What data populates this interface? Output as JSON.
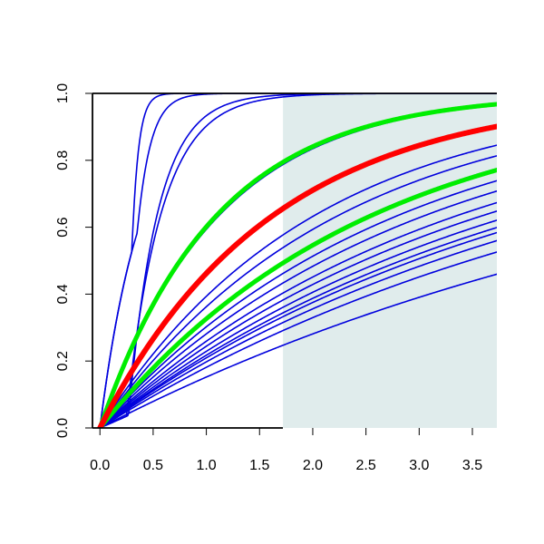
{
  "chart_data": {
    "type": "line",
    "title": "",
    "xlabel": "",
    "ylabel": "",
    "xlim": [
      -0.07,
      3.73
    ],
    "ylim": [
      0,
      1
    ],
    "grid": false,
    "legend": "none",
    "x_ticks": [
      "0.0",
      "0.5",
      "1.0",
      "1.5",
      "2.0",
      "2.5",
      "3.0",
      "3.5"
    ],
    "y_ticks": [
      "0.0",
      "0.2",
      "0.4",
      "0.6",
      "0.8",
      "1.0"
    ],
    "shaded_region": {
      "x_from": 1.72,
      "x_to": 3.73,
      "color": "#e0ecec"
    },
    "colors": {
      "blue": "#0000dd",
      "red": "#ff0000",
      "green": "#00ee00",
      "axis": "#000000"
    },
    "series": [
      {
        "color": "blue",
        "kind": "rise_step",
        "start": 0.3,
        "rate": 14,
        "width": 1.6
      },
      {
        "color": "blue",
        "kind": "step_at",
        "start": 0.27,
        "rate": 3.5,
        "width": 1.6
      },
      {
        "color": "blue",
        "kind": "step_at",
        "start": 0.25,
        "rate": 2.9,
        "width": 1.6
      },
      {
        "color": "blue",
        "kind": "rise_step",
        "start": 0.35,
        "rate": 5.5,
        "width": 1.6
      },
      {
        "color": "blue",
        "kind": "exp",
        "rate": 0.9,
        "width": 1.6
      },
      {
        "color": "blue",
        "kind": "exp",
        "rate": 0.5,
        "width": 1.6
      },
      {
        "color": "blue",
        "kind": "exp",
        "rate": 0.45,
        "width": 1.6
      },
      {
        "color": "blue",
        "kind": "exp",
        "rate": 0.4,
        "width": 1.6
      },
      {
        "color": "blue",
        "kind": "exp",
        "rate": 0.36,
        "width": 1.6
      },
      {
        "color": "blue",
        "kind": "exp",
        "rate": 0.33,
        "width": 1.6
      },
      {
        "color": "blue",
        "kind": "exp",
        "rate": 0.3,
        "width": 1.6
      },
      {
        "color": "blue",
        "kind": "exp",
        "rate": 0.28,
        "width": 1.6
      },
      {
        "color": "blue",
        "kind": "exp",
        "rate": 0.26,
        "width": 1.6
      },
      {
        "color": "blue",
        "kind": "exp",
        "rate": 0.245,
        "width": 1.6
      },
      {
        "color": "blue",
        "kind": "exp",
        "rate": 0.235,
        "width": 1.6
      },
      {
        "color": "blue",
        "kind": "exp",
        "rate": 0.22,
        "width": 1.6
      },
      {
        "color": "blue",
        "kind": "exp",
        "rate": 0.2,
        "width": 1.6
      },
      {
        "color": "blue",
        "kind": "exp",
        "rate": 0.165,
        "width": 1.6
      },
      {
        "color": "green",
        "kind": "exp",
        "rate": 0.92,
        "width": 5
      },
      {
        "color": "green",
        "kind": "exp",
        "rate": 0.395,
        "width": 5
      },
      {
        "color": "red",
        "kind": "exp",
        "rate": 0.62,
        "width": 6
      }
    ]
  }
}
